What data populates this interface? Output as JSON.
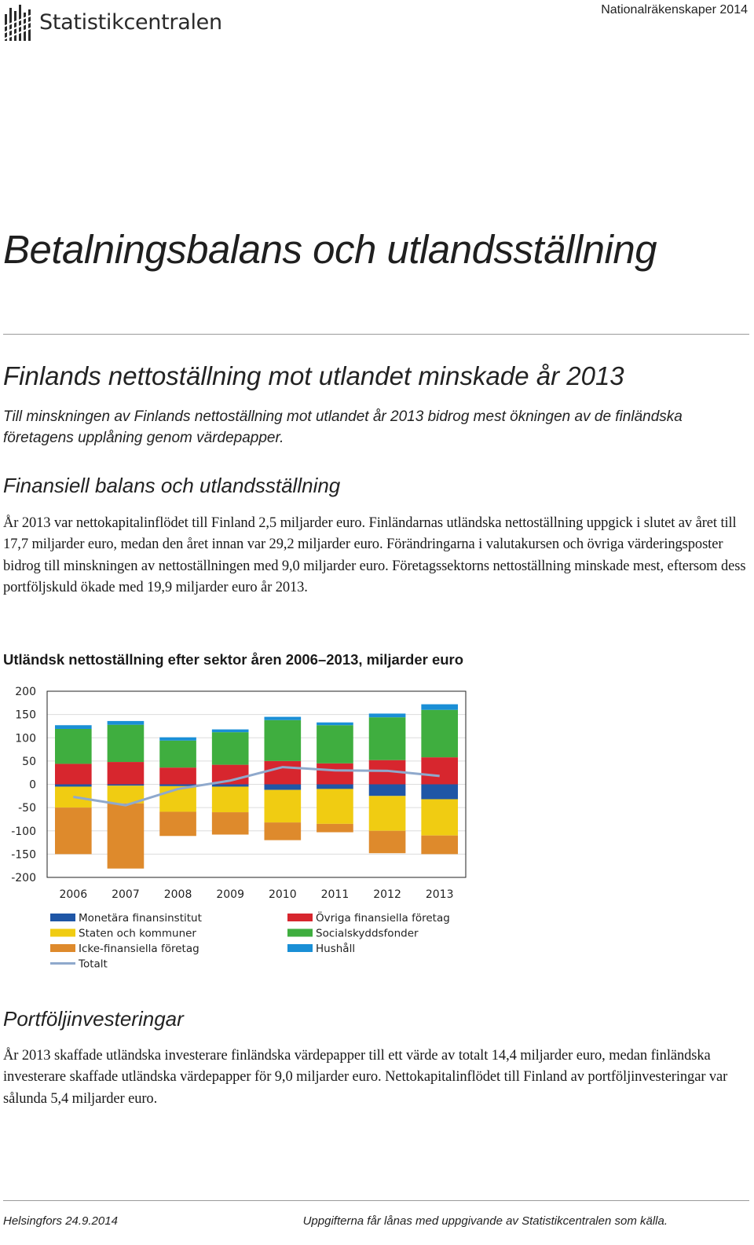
{
  "header": {
    "logo_text": "Statistikcentralen",
    "publication": "Nationalräkenskaper 2014"
  },
  "main_title": "Betalningsbalans och utlandsställning",
  "subtitle": "Finlands nettoställning mot utlandet minskade år 2013",
  "lead": "Till minskningen av Finlands nettoställning mot utlandet år 2013 bidrog mest ökningen av de finländska företagens upplåning genom värdepapper.",
  "section1": {
    "heading": "Finansiell balans och utlandsställning",
    "paragraph": "År 2013 var nettokapitalinflödet till Finland 2,5 miljarder euro. Finländarnas utländska nettoställning uppgick i slutet av året till 17,7 miljarder euro, medan den året innan var 29,2 miljarder euro. Förändringarna i valutakursen och övriga värderingsposter bidrog till minskningen av nettoställningen med 9,0 miljarder euro. Företagssektorns nettoställning minskade mest, eftersom dess portföljskuld ökade med 19,9 miljarder euro år 2013."
  },
  "chart_title": "Utländsk nettoställning efter sektor åren 2006–2013, miljarder euro",
  "chart_data": {
    "type": "bar",
    "stacked": true,
    "categories": [
      "2006",
      "2007",
      "2008",
      "2009",
      "2010",
      "2011",
      "2012",
      "2013"
    ],
    "ylim": [
      -200,
      200
    ],
    "yticks": [
      200,
      150,
      100,
      50,
      0,
      -50,
      -100,
      -150,
      -200
    ],
    "series": [
      {
        "name": "Monetära finansinstitut",
        "color": "#1f56a6",
        "values": [
          -5,
          -3,
          -4,
          -5,
          -12,
          -10,
          -25,
          -32
        ]
      },
      {
        "name": "Övriga finansiella företag",
        "color": "#d7262e",
        "values": [
          44,
          48,
          36,
          42,
          50,
          45,
          52,
          58
        ]
      },
      {
        "name": "Staten och kommuner",
        "color": "#f0cc12",
        "values": [
          -45,
          -38,
          -55,
          -55,
          -70,
          -75,
          -75,
          -78
        ]
      },
      {
        "name": "Socialskyddsfonder",
        "color": "#3fae3f",
        "values": [
          75,
          80,
          58,
          70,
          88,
          82,
          92,
          102
        ]
      },
      {
        "name": "Icke-finansiella företag",
        "color": "#de8a2c",
        "values": [
          -100,
          -140,
          -52,
          -48,
          -38,
          -18,
          -48,
          -40
        ]
      },
      {
        "name": "Hushåll",
        "color": "#1a8fd6",
        "values": [
          8,
          8,
          7,
          6,
          7,
          6,
          8,
          12
        ]
      },
      {
        "name": "Totalt",
        "color": "#8fa9cc",
        "type": "line",
        "values": [
          -27,
          -45,
          -10,
          8,
          37,
          30,
          29,
          18
        ]
      }
    ]
  },
  "section2": {
    "heading": "Portföljinvesteringar",
    "paragraph": "År 2013 skaffade utländska investerare finländska värdepapper till ett värde av totalt 14,4 miljarder euro, medan finländska investerare skaffade utländska värdepapper för 9,0 miljarder euro. Nettokapitalinflödet till Finland av portföljinvesteringar var sålunda 5,4 miljarder euro."
  },
  "footer": {
    "left": "Helsingfors 24.9.2014",
    "right": "Uppgifterna får lånas med uppgivande av Statistikcentralen som källa."
  }
}
